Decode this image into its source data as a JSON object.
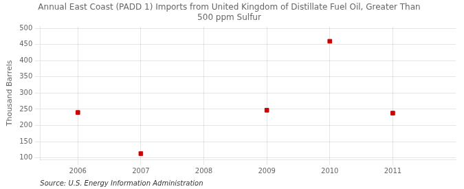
{
  "chart_data": {
    "type": "scatter",
    "title": "Annual East Coast (PADD 1) Imports from United Kingdom of Distillate Fuel Oil, Greater Than\n500 ppm Sulfur",
    "ylabel": "Thousand Barrels",
    "annotations": [
      "Source: U.S. Energy Information Administration"
    ],
    "x": [
      2006,
      2007,
      2009,
      2010,
      2011
    ],
    "values": [
      240,
      113,
      247,
      460,
      238
    ],
    "color": "#cc0000",
    "marker": "square",
    "xlim": [
      2005.4,
      2012.0
    ],
    "ylim": [
      95,
      505
    ],
    "xticks": [
      2006,
      2007,
      2008,
      2009,
      2010,
      2011
    ],
    "yticks": [
      100,
      150,
      200,
      250,
      300,
      350,
      400,
      450,
      500
    ],
    "grid": true
  }
}
